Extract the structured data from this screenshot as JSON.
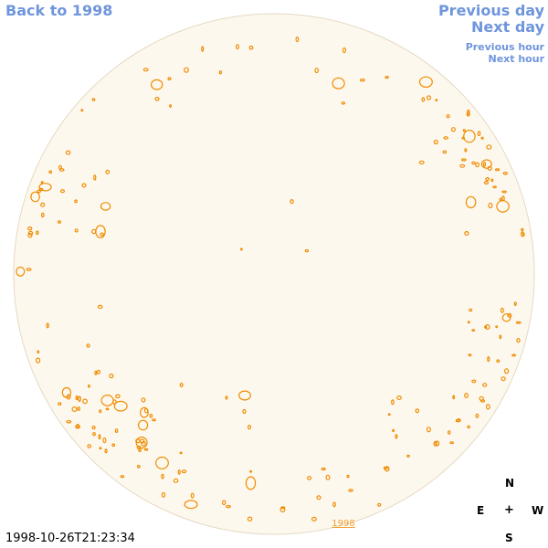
{
  "nav": {
    "back_label": "Back to 1998",
    "prev_day_label": "Previous day",
    "next_day_label": "Next day",
    "prev_hour_label": "Previous hour",
    "next_hour_label": "Next hour"
  },
  "map": {
    "year_link_label": "1998",
    "timestamp": "1998-10-26T21:23:34",
    "compass": {
      "north": "N",
      "east": "E",
      "center": "+",
      "west": "W",
      "south": "S"
    }
  },
  "colors": {
    "link": "#6f95dd",
    "disk_fill": "#fdf8ee",
    "disk_edge": "#e5d9c3",
    "feature": "#f08c00",
    "year_link": "#f0a030"
  },
  "icons": {
    "direction_marker": "plus-glyph"
  }
}
